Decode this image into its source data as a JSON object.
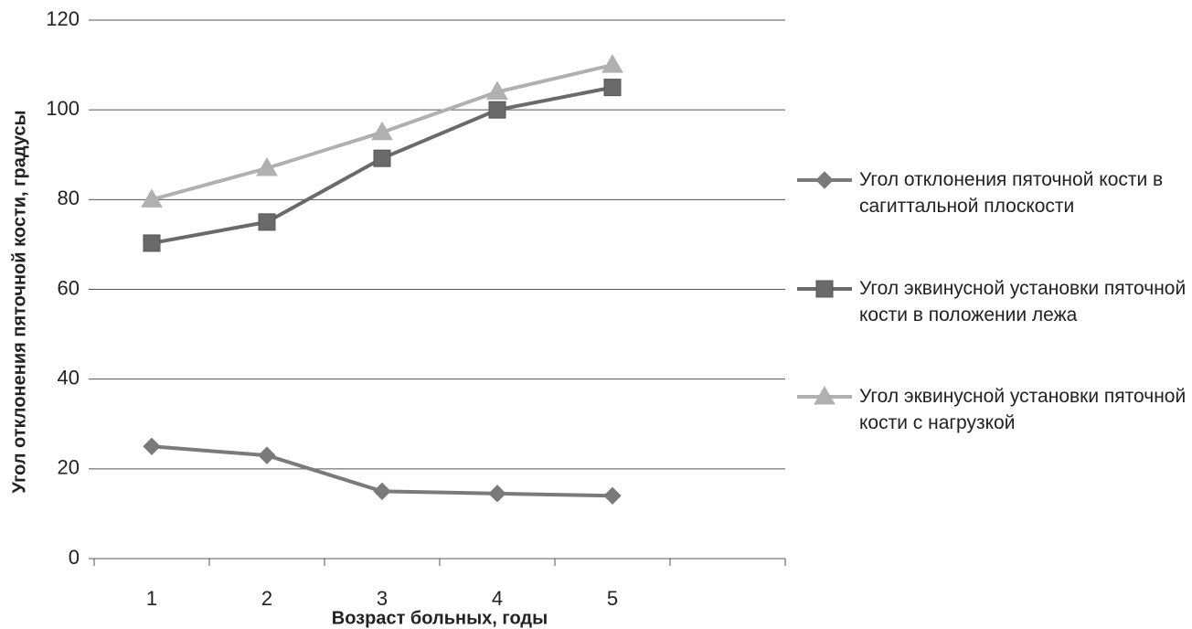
{
  "chart_data": {
    "type": "line",
    "x_label": "Возраст больных, годы",
    "y_label": "Угол отклонения пяточной кости, градусы",
    "categories": [
      1,
      2,
      3,
      4,
      5,
      null
    ],
    "series": [
      {
        "name": "Угол отклонения пяточной кости в сагиттальной плоскости",
        "color": "#7a7a7a",
        "marker": "diamond",
        "values": [
          25,
          23,
          15,
          14.5,
          14,
          null
        ]
      },
      {
        "name": "Угол эквинусной установки пяточной кости в положении лежа",
        "color": "#6a6a6a",
        "marker": "square",
        "values": [
          70.3,
          75,
          89.2,
          100,
          105,
          null
        ]
      },
      {
        "name": "Угол эквинусной установки пяточной кости с нагрузкой",
        "color": "#b0b0b0",
        "marker": "triangle",
        "values": [
          80,
          87,
          95,
          104,
          110,
          null
        ]
      }
    ],
    "ylim": [
      0,
      120
    ],
    "yticks": [
      0,
      20,
      40,
      60,
      80,
      100,
      120
    ],
    "grid": true,
    "legend": "right"
  }
}
